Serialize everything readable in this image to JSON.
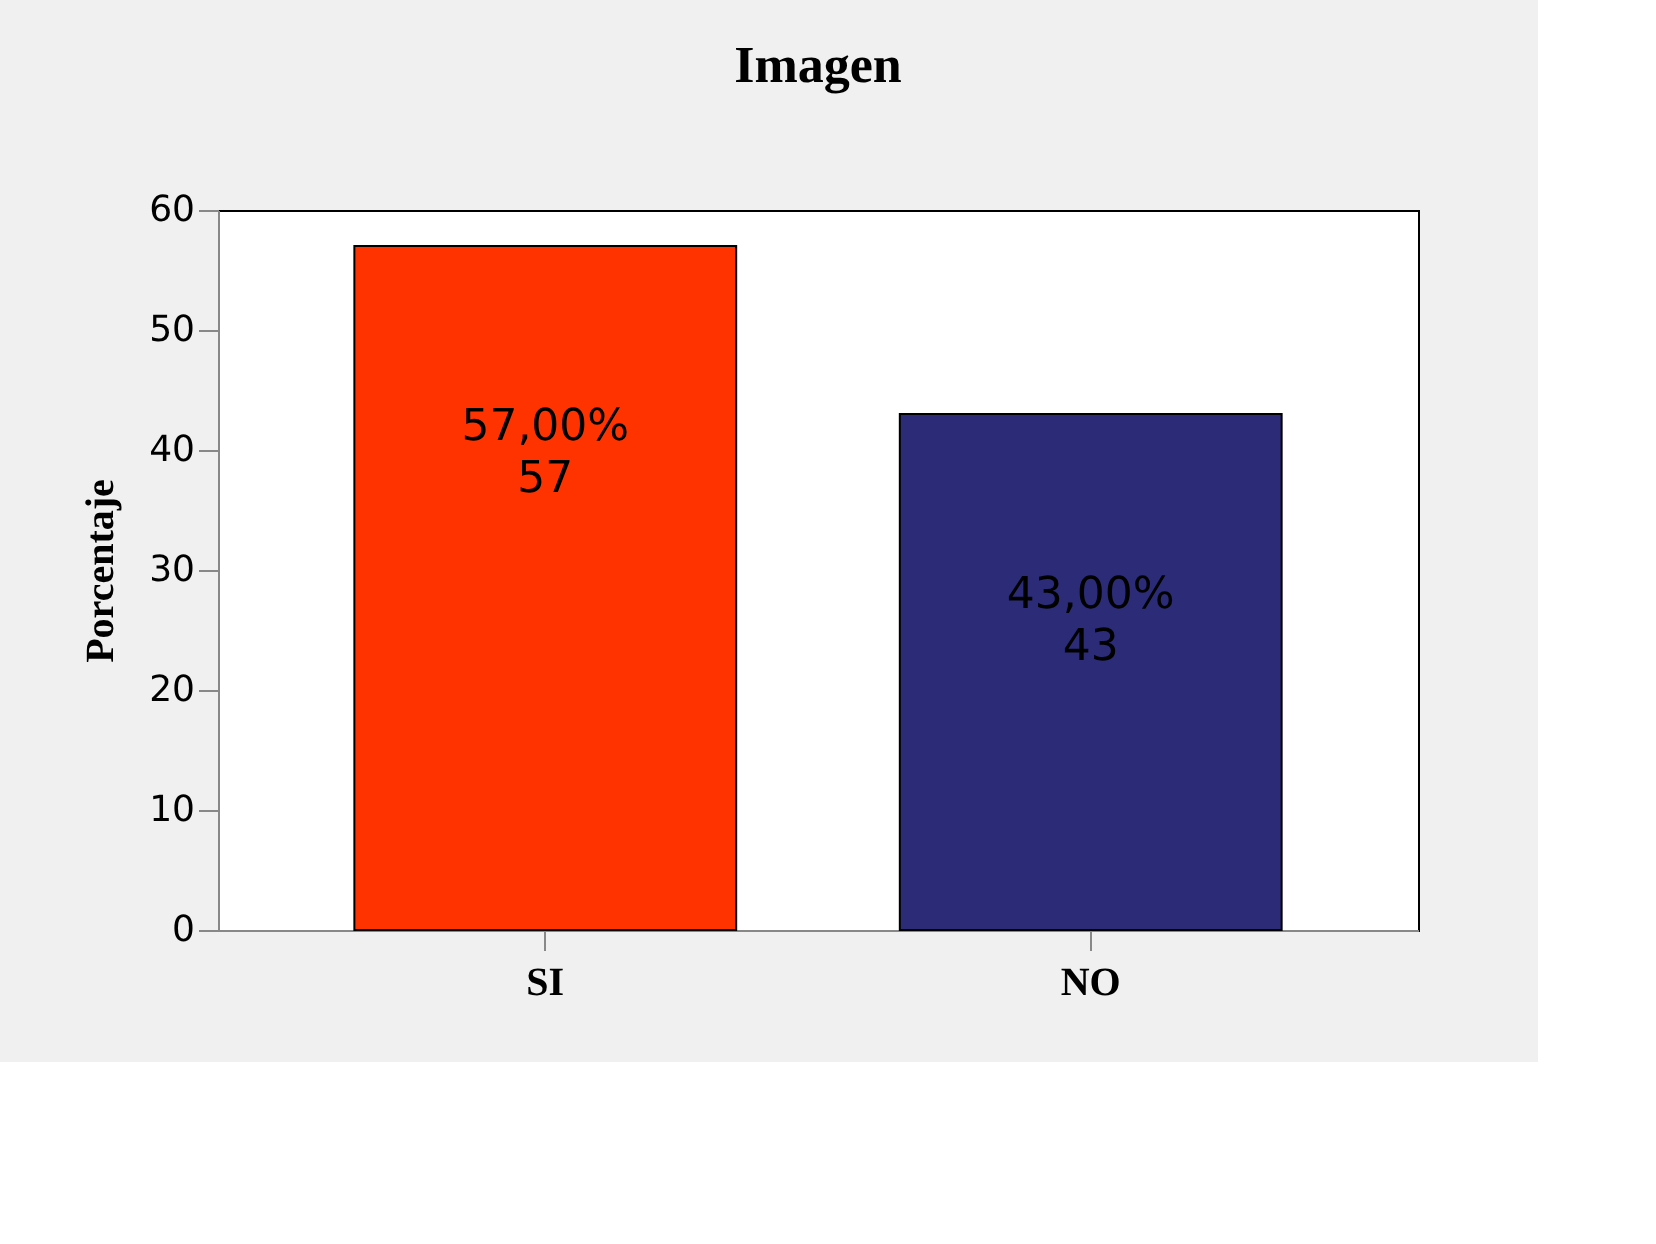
{
  "chart_data": {
    "type": "bar",
    "title": "Imagen",
    "ylabel": "Porcentaje",
    "categories": [
      "SI",
      "NO"
    ],
    "values": [
      57,
      43
    ],
    "colors": [
      "#ff3300",
      "#2b2b78"
    ],
    "value_labels": [
      "57,00%\n57",
      "43,00%\n43"
    ],
    "ylim": [
      0,
      60
    ],
    "yticks": [
      0,
      10,
      20,
      30,
      40,
      50,
      60
    ]
  }
}
